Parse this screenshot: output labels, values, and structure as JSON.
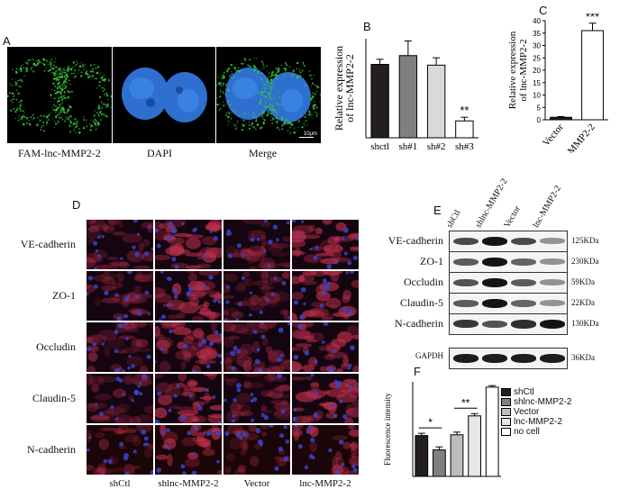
{
  "panels": {
    "a": "A",
    "b": "B",
    "c": "C",
    "d": "D",
    "e": "E",
    "f": "F"
  },
  "panel_a": {
    "captions": [
      "FAM-lnc-MMP2-2",
      "DAPI",
      "Merge"
    ],
    "scale_bar": "10μm"
  },
  "panel_d": {
    "rows": [
      "VE-cadherin",
      "ZO-1",
      "Occludin",
      "Claudin-5",
      "N-cadherin"
    ],
    "columns": [
      "shCtl",
      "shlnc-MMP2-2",
      "Vector",
      "lnc-MMP2-2"
    ]
  },
  "panel_e": {
    "lanes": [
      "shCtl",
      "shlnc-MMP2-2",
      "Vector",
      "lnc-MMP2-2"
    ],
    "proteins": [
      "VE-cadherin",
      "ZO-1",
      "Occludin",
      "Claudin-5",
      "N-cadherin",
      "GAPDH"
    ],
    "sizes": [
      "125KDa",
      "230KDa",
      "59KDa",
      "22KDa",
      "130KDa",
      "36KDa"
    ]
  },
  "chart_data": [
    {
      "type": "bar",
      "panel": "B",
      "categories": [
        "shctl",
        "sh#1",
        "sh#2",
        "sh#3"
      ],
      "values": [
        1.0,
        1.12,
        0.99,
        0.23
      ],
      "errors": [
        0.07,
        0.2,
        0.1,
        0.05
      ],
      "colors": [
        "#231f20",
        "#808080",
        "#d9d9d9",
        "#ffffff"
      ],
      "ylabel": "Relative expression\nof lnc-MMP2-2",
      "ylim": [
        0,
        1.35
      ],
      "annotations": [
        {
          "category": "sh#3",
          "text": "**"
        }
      ]
    },
    {
      "type": "bar",
      "panel": "C",
      "categories": [
        "Vector",
        "lnc-MMP2-2"
      ],
      "values": [
        1.0,
        36.0
      ],
      "errors": [
        0.3,
        3.0
      ],
      "colors": [
        "#231f20",
        "#ffffff"
      ],
      "ylabel": "Relative expression\nof lnc-MMP2-2",
      "ylim": [
        0,
        40
      ],
      "yticks": [
        0,
        5,
        10,
        15,
        20,
        25,
        30,
        35,
        40
      ],
      "annotations": [
        {
          "category": "lnc-MMP2-2",
          "text": "***"
        }
      ]
    },
    {
      "type": "bar",
      "panel": "F",
      "categories": [
        "shCtl",
        "shlnc-MMP2-2",
        "Vector",
        "lnc-MMP2-2",
        "no cell"
      ],
      "values": [
        108,
        70,
        110,
        160,
        236
      ],
      "errors": [
        6,
        8,
        7,
        6,
        4
      ],
      "colors": [
        "#231f20",
        "#808080",
        "#bdbdbd",
        "#e6e6e6",
        "#ffffff"
      ],
      "ylabel": "Fluorescence intensity",
      "ylim": [
        0,
        250
      ],
      "legend": [
        "shCtl",
        "shlnc-MMP2-2",
        "Vector",
        "lnc-MMP2-2",
        "no cell"
      ],
      "legend_position": "right",
      "annotations": [
        {
          "pair": [
            0,
            1
          ],
          "text": "*"
        },
        {
          "pair": [
            2,
            3
          ],
          "text": "**"
        }
      ]
    }
  ],
  "colors": {
    "fam_green": "#3cc83c",
    "dapi_blue": "#2e6fd0",
    "actin_red": "#c0304c",
    "nuclei_blue": "#3a44c8"
  }
}
